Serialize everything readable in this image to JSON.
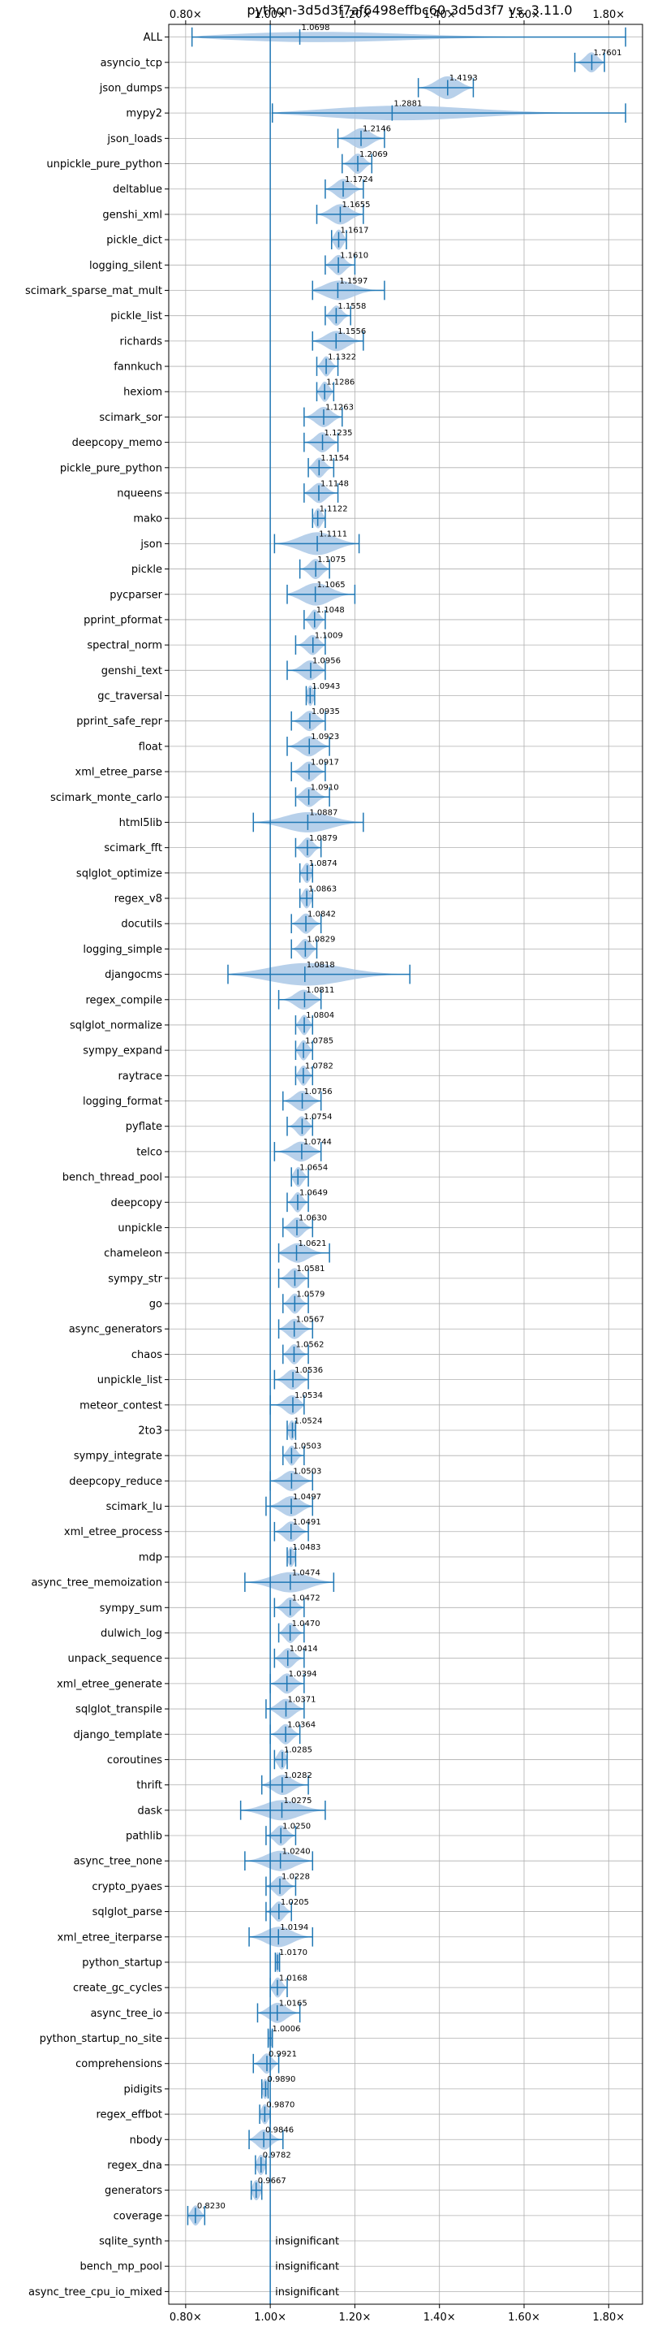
{
  "chart_data": {
    "type": "violin",
    "title": "python-3d5d3f7af6498effbc60-3d5d3f7 vs. 3.11.0",
    "xlim": [
      0.76,
      1.88
    ],
    "xticks": [
      0.8,
      1.0,
      1.2,
      1.4,
      1.6,
      1.8
    ],
    "xtick_labels": [
      "0.80×",
      "1.00×",
      "1.20×",
      "1.40×",
      "1.60×",
      "1.80×"
    ],
    "reference_line": 1.0,
    "grid": true,
    "axis_ticks": "top and bottom",
    "colors": {
      "violin": "#aac8e6",
      "line": "#1f77b4",
      "grid": "#b0b0b0"
    },
    "insignificant_text": "insignificant",
    "benchmarks": [
      {
        "name": "ALL",
        "value": 1.0698,
        "label": "1.0698",
        "min": 0.815,
        "max": 1.84,
        "width": 0.45
      },
      {
        "name": "asyncio_tcp",
        "value": 1.7601,
        "label": "1.7601",
        "min": 1.72,
        "max": 1.79,
        "width": 0.8
      },
      {
        "name": "json_dumps",
        "value": 1.4193,
        "label": "1.4193",
        "min": 1.35,
        "max": 1.48,
        "width": 0.9
      },
      {
        "name": "mypy2",
        "value": 1.2881,
        "label": "1.2881",
        "min": 1.005,
        "max": 1.84,
        "width": 0.6
      },
      {
        "name": "json_loads",
        "value": 1.2146,
        "label": "1.2146",
        "min": 1.16,
        "max": 1.27,
        "width": 0.8
      },
      {
        "name": "unpickle_pure_python",
        "value": 1.2069,
        "label": "1.2069",
        "min": 1.17,
        "max": 1.24,
        "width": 0.8
      },
      {
        "name": "deltablue",
        "value": 1.1724,
        "label": "1.1724",
        "min": 1.13,
        "max": 1.22,
        "width": 0.8
      },
      {
        "name": "genshi_xml",
        "value": 1.1655,
        "label": "1.1655",
        "min": 1.11,
        "max": 1.22,
        "width": 0.8
      },
      {
        "name": "pickle_dict",
        "value": 1.1617,
        "label": "1.1617",
        "min": 1.145,
        "max": 1.18,
        "width": 0.8
      },
      {
        "name": "logging_silent",
        "value": 1.161,
        "label": "1.1610",
        "min": 1.13,
        "max": 1.2,
        "width": 0.8
      },
      {
        "name": "scimark_sparse_mat_mult",
        "value": 1.1597,
        "label": "1.1597",
        "min": 1.1,
        "max": 1.27,
        "width": 0.8
      },
      {
        "name": "pickle_list",
        "value": 1.1558,
        "label": "1.1558",
        "min": 1.13,
        "max": 1.19,
        "width": 0.8
      },
      {
        "name": "richards",
        "value": 1.1556,
        "label": "1.1556",
        "min": 1.1,
        "max": 1.22,
        "width": 0.8
      },
      {
        "name": "fannkuch",
        "value": 1.1322,
        "label": "1.1322",
        "min": 1.11,
        "max": 1.16,
        "width": 0.8
      },
      {
        "name": "hexiom",
        "value": 1.1286,
        "label": "1.1286",
        "min": 1.11,
        "max": 1.15,
        "width": 0.8
      },
      {
        "name": "scimark_sor",
        "value": 1.1263,
        "label": "1.1263",
        "min": 1.08,
        "max": 1.17,
        "width": 0.8
      },
      {
        "name": "deepcopy_memo",
        "value": 1.1235,
        "label": "1.1235",
        "min": 1.08,
        "max": 1.16,
        "width": 0.8
      },
      {
        "name": "pickle_pure_python",
        "value": 1.1154,
        "label": "1.1154",
        "min": 1.09,
        "max": 1.15,
        "width": 0.8
      },
      {
        "name": "nqueens",
        "value": 1.1148,
        "label": "1.1148",
        "min": 1.08,
        "max": 1.16,
        "width": 0.8
      },
      {
        "name": "mako",
        "value": 1.1122,
        "label": "1.1122",
        "min": 1.1,
        "max": 1.13,
        "width": 0.8
      },
      {
        "name": "json",
        "value": 1.1111,
        "label": "1.1111",
        "min": 1.01,
        "max": 1.21,
        "width": 0.9
      },
      {
        "name": "pickle",
        "value": 1.1075,
        "label": "1.1075",
        "min": 1.07,
        "max": 1.14,
        "width": 0.8
      },
      {
        "name": "pycparser",
        "value": 1.1065,
        "label": "1.1065",
        "min": 1.04,
        "max": 1.2,
        "width": 0.9
      },
      {
        "name": "pprint_pformat",
        "value": 1.1048,
        "label": "1.1048",
        "min": 1.08,
        "max": 1.13,
        "width": 0.8
      },
      {
        "name": "spectral_norm",
        "value": 1.1009,
        "label": "1.1009",
        "min": 1.06,
        "max": 1.13,
        "width": 0.8
      },
      {
        "name": "genshi_text",
        "value": 1.0956,
        "label": "1.0956",
        "min": 1.04,
        "max": 1.13,
        "width": 0.8
      },
      {
        "name": "gc_traversal",
        "value": 1.0943,
        "label": "1.0943",
        "min": 1.085,
        "max": 1.105,
        "width": 0.8
      },
      {
        "name": "pprint_safe_repr",
        "value": 1.0935,
        "label": "1.0935",
        "min": 1.05,
        "max": 1.13,
        "width": 0.8
      },
      {
        "name": "float",
        "value": 1.0923,
        "label": "1.0923",
        "min": 1.04,
        "max": 1.14,
        "width": 0.8
      },
      {
        "name": "xml_etree_parse",
        "value": 1.0917,
        "label": "1.0917",
        "min": 1.05,
        "max": 1.13,
        "width": 0.8
      },
      {
        "name": "scimark_monte_carlo",
        "value": 1.091,
        "label": "1.0910",
        "min": 1.06,
        "max": 1.14,
        "width": 0.8
      },
      {
        "name": "html5lib",
        "value": 1.0887,
        "label": "1.0887",
        "min": 0.96,
        "max": 1.22,
        "width": 0.8
      },
      {
        "name": "scimark_fft",
        "value": 1.0879,
        "label": "1.0879",
        "min": 1.06,
        "max": 1.12,
        "width": 0.8
      },
      {
        "name": "sqlglot_optimize",
        "value": 1.0874,
        "label": "1.0874",
        "min": 1.07,
        "max": 1.1,
        "width": 0.8
      },
      {
        "name": "regex_v8",
        "value": 1.0863,
        "label": "1.0863",
        "min": 1.07,
        "max": 1.1,
        "width": 0.8
      },
      {
        "name": "docutils",
        "value": 1.0842,
        "label": "1.0842",
        "min": 1.05,
        "max": 1.12,
        "width": 0.8
      },
      {
        "name": "logging_simple",
        "value": 1.0829,
        "label": "1.0829",
        "min": 1.05,
        "max": 1.11,
        "width": 0.8
      },
      {
        "name": "djangocms",
        "value": 1.0818,
        "label": "1.0818",
        "min": 0.9,
        "max": 1.33,
        "width": 0.9
      },
      {
        "name": "regex_compile",
        "value": 1.0811,
        "label": "1.0811",
        "min": 1.02,
        "max": 1.12,
        "width": 0.8
      },
      {
        "name": "sqlglot_normalize",
        "value": 1.0804,
        "label": "1.0804",
        "min": 1.06,
        "max": 1.1,
        "width": 0.8
      },
      {
        "name": "sympy_expand",
        "value": 1.0785,
        "label": "1.0785",
        "min": 1.06,
        "max": 1.1,
        "width": 0.8
      },
      {
        "name": "raytrace",
        "value": 1.0782,
        "label": "1.0782",
        "min": 1.06,
        "max": 1.1,
        "width": 0.8
      },
      {
        "name": "logging_format",
        "value": 1.0756,
        "label": "1.0756",
        "min": 1.03,
        "max": 1.12,
        "width": 0.8
      },
      {
        "name": "pyflate",
        "value": 1.0754,
        "label": "1.0754",
        "min": 1.04,
        "max": 1.1,
        "width": 0.8
      },
      {
        "name": "telco",
        "value": 1.0744,
        "label": "1.0744",
        "min": 1.01,
        "max": 1.12,
        "width": 0.8
      },
      {
        "name": "bench_thread_pool",
        "value": 1.0654,
        "label": "1.0654",
        "min": 1.05,
        "max": 1.09,
        "width": 0.8
      },
      {
        "name": "deepcopy",
        "value": 1.0649,
        "label": "1.0649",
        "min": 1.04,
        "max": 1.09,
        "width": 0.8
      },
      {
        "name": "unpickle",
        "value": 1.063,
        "label": "1.0630",
        "min": 1.03,
        "max": 1.1,
        "width": 0.8
      },
      {
        "name": "chameleon",
        "value": 1.0621,
        "label": "1.0621",
        "min": 1.02,
        "max": 1.14,
        "width": 0.8
      },
      {
        "name": "sympy_str",
        "value": 1.0581,
        "label": "1.0581",
        "min": 1.02,
        "max": 1.09,
        "width": 0.8
      },
      {
        "name": "go",
        "value": 1.0579,
        "label": "1.0579",
        "min": 1.03,
        "max": 1.09,
        "width": 0.8
      },
      {
        "name": "async_generators",
        "value": 1.0567,
        "label": "1.0567",
        "min": 1.02,
        "max": 1.1,
        "width": 0.8
      },
      {
        "name": "chaos",
        "value": 1.0562,
        "label": "1.0562",
        "min": 1.03,
        "max": 1.09,
        "width": 0.8
      },
      {
        "name": "unpickle_list",
        "value": 1.0536,
        "label": "1.0536",
        "min": 1.01,
        "max": 1.09,
        "width": 0.8
      },
      {
        "name": "meteor_contest",
        "value": 1.0534,
        "label": "1.0534",
        "min": 1.0,
        "max": 1.08,
        "width": 0.8
      },
      {
        "name": "2to3",
        "value": 1.0524,
        "label": "1.0524",
        "min": 1.04,
        "max": 1.06,
        "width": 0.8
      },
      {
        "name": "sympy_integrate",
        "value": 1.0503,
        "label": "1.0503",
        "min": 1.03,
        "max": 1.08,
        "width": 0.8
      },
      {
        "name": "deepcopy_reduce",
        "value": 1.0503,
        "label": "1.0503",
        "min": 1.0,
        "max": 1.1,
        "width": 0.8
      },
      {
        "name": "scimark_lu",
        "value": 1.0497,
        "label": "1.0497",
        "min": 0.99,
        "max": 1.1,
        "width": 0.8
      },
      {
        "name": "xml_etree_process",
        "value": 1.0491,
        "label": "1.0491",
        "min": 1.01,
        "max": 1.09,
        "width": 0.8
      },
      {
        "name": "mdp",
        "value": 1.0483,
        "label": "1.0483",
        "min": 1.04,
        "max": 1.06,
        "width": 0.8
      },
      {
        "name": "async_tree_memoization",
        "value": 1.0474,
        "label": "1.0474",
        "min": 0.94,
        "max": 1.15,
        "width": 0.8
      },
      {
        "name": "sympy_sum",
        "value": 1.0472,
        "label": "1.0472",
        "min": 1.01,
        "max": 1.08,
        "width": 0.8
      },
      {
        "name": "dulwich_log",
        "value": 1.047,
        "label": "1.0470",
        "min": 1.02,
        "max": 1.08,
        "width": 0.8
      },
      {
        "name": "unpack_sequence",
        "value": 1.0414,
        "label": "1.0414",
        "min": 1.01,
        "max": 1.08,
        "width": 0.8
      },
      {
        "name": "xml_etree_generate",
        "value": 1.0394,
        "label": "1.0394",
        "min": 1.0,
        "max": 1.08,
        "width": 0.8
      },
      {
        "name": "sqlglot_transpile",
        "value": 1.0371,
        "label": "1.0371",
        "min": 0.99,
        "max": 1.08,
        "width": 0.8
      },
      {
        "name": "django_template",
        "value": 1.0364,
        "label": "1.0364",
        "min": 1.0,
        "max": 1.07,
        "width": 0.8
      },
      {
        "name": "coroutines",
        "value": 1.0285,
        "label": "1.0285",
        "min": 1.01,
        "max": 1.04,
        "width": 0.8
      },
      {
        "name": "thrift",
        "value": 1.0282,
        "label": "1.0282",
        "min": 0.98,
        "max": 1.09,
        "width": 0.8
      },
      {
        "name": "dask",
        "value": 1.0275,
        "label": "1.0275",
        "min": 0.93,
        "max": 1.13,
        "width": 0.8
      },
      {
        "name": "pathlib",
        "value": 1.025,
        "label": "1.0250",
        "min": 0.99,
        "max": 1.06,
        "width": 0.8
      },
      {
        "name": "async_tree_none",
        "value": 1.024,
        "label": "1.0240",
        "min": 0.94,
        "max": 1.1,
        "width": 0.8
      },
      {
        "name": "crypto_pyaes",
        "value": 1.0228,
        "label": "1.0228",
        "min": 0.99,
        "max": 1.06,
        "width": 0.8
      },
      {
        "name": "sqlglot_parse",
        "value": 1.0205,
        "label": "1.0205",
        "min": 0.99,
        "max": 1.05,
        "width": 0.8
      },
      {
        "name": "xml_etree_iterparse",
        "value": 1.0194,
        "label": "1.0194",
        "min": 0.95,
        "max": 1.1,
        "width": 0.8
      },
      {
        "name": "python_startup",
        "value": 1.017,
        "label": "1.0170",
        "min": 1.012,
        "max": 1.022,
        "width": 0.8
      },
      {
        "name": "create_gc_cycles",
        "value": 1.0168,
        "label": "1.0168",
        "min": 1.0,
        "max": 1.04,
        "width": 0.8
      },
      {
        "name": "async_tree_io",
        "value": 1.0165,
        "label": "1.0165",
        "min": 0.97,
        "max": 1.07,
        "width": 0.8
      },
      {
        "name": "python_startup_no_site",
        "value": 1.0006,
        "label": "1.0006",
        "min": 0.995,
        "max": 1.005,
        "width": 0.8
      },
      {
        "name": "comprehensions",
        "value": 0.9921,
        "label": "0.9921",
        "min": 0.96,
        "max": 1.02,
        "width": 0.8
      },
      {
        "name": "pidigits",
        "value": 0.989,
        "label": "0.9890",
        "min": 0.98,
        "max": 0.995,
        "width": 0.8
      },
      {
        "name": "regex_effbot",
        "value": 0.987,
        "label": "0.9870",
        "min": 0.975,
        "max": 1.0,
        "width": 0.8
      },
      {
        "name": "nbody",
        "value": 0.9846,
        "label": "0.9846",
        "min": 0.95,
        "max": 1.03,
        "width": 0.8
      },
      {
        "name": "regex_dna",
        "value": 0.9782,
        "label": "0.9782",
        "min": 0.965,
        "max": 0.99,
        "width": 0.8
      },
      {
        "name": "generators",
        "value": 0.9667,
        "label": "0.9667",
        "min": 0.955,
        "max": 0.98,
        "width": 0.8
      },
      {
        "name": "coverage",
        "value": 0.823,
        "label": "0.8230",
        "min": 0.805,
        "max": 0.845,
        "width": 0.8
      },
      {
        "name": "sqlite_synth",
        "insignificant": true
      },
      {
        "name": "bench_mp_pool",
        "insignificant": true
      },
      {
        "name": "async_tree_cpu_io_mixed",
        "insignificant": true
      }
    ]
  }
}
